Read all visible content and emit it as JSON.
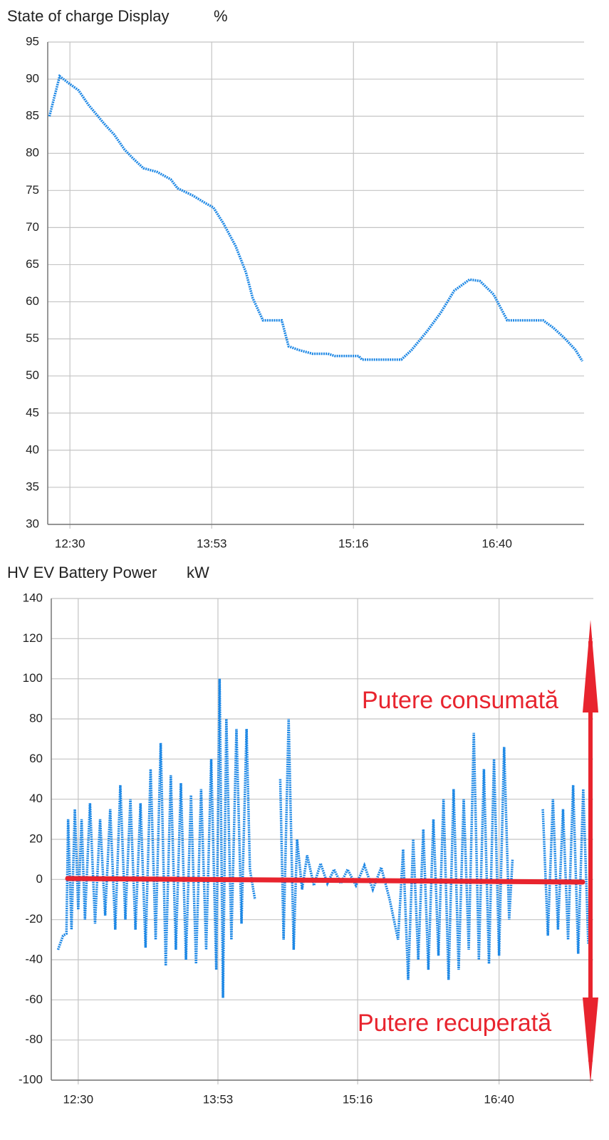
{
  "chart_data": [
    {
      "type": "line",
      "title": "State of charge Display",
      "unit": "%",
      "color": "#1e88e5",
      "grid": true,
      "xlim": [
        737,
        1051
      ],
      "xticks": [
        {
          "value": 750,
          "label": "12:30"
        },
        {
          "value": 833,
          "label": "13:53"
        },
        {
          "value": 916,
          "label": "15:16"
        },
        {
          "value": 1000,
          "label": "16:40"
        }
      ],
      "ylim": [
        30,
        95
      ],
      "yticks": [
        30,
        35,
        40,
        45,
        50,
        55,
        60,
        65,
        70,
        75,
        80,
        85,
        90,
        95
      ],
      "x": [
        738,
        744,
        749,
        755,
        761,
        770,
        776,
        782,
        787,
        793,
        801,
        809,
        813,
        822,
        830,
        834,
        840,
        847,
        853,
        857,
        863,
        874,
        878,
        884,
        892,
        901,
        905,
        919,
        921,
        944,
        950,
        959,
        967,
        975,
        984,
        990,
        998,
        1006,
        1027,
        1033,
        1040,
        1046,
        1050
      ],
      "values": [
        85,
        90.4,
        89.5,
        88.5,
        86.5,
        84,
        82.5,
        80.5,
        79.3,
        78,
        77.5,
        76.5,
        75.3,
        74.3,
        73.2,
        72.7,
        70.5,
        67.5,
        64,
        60.5,
        57.5,
        57.5,
        54,
        53.5,
        53,
        53,
        52.7,
        52.7,
        52.2,
        52.2,
        53.5,
        56,
        58.5,
        61.5,
        63,
        62.8,
        61,
        57.5,
        57.5,
        56.5,
        55,
        53.5,
        52
      ]
    },
    {
      "type": "line",
      "title": "HV EV Battery Power",
      "unit": "kW",
      "color": "#1e88e5",
      "grid": true,
      "annotations": [
        "Putere consumată",
        "Putere recuperată"
      ],
      "xlim": [
        734,
        1056
      ],
      "xticks": [
        {
          "value": 750,
          "label": "12:30"
        },
        {
          "value": 833,
          "label": "13:53"
        },
        {
          "value": 916,
          "label": "15:16"
        },
        {
          "value": 1000,
          "label": "16:40"
        }
      ],
      "ylim": [
        -100,
        140
      ],
      "yticks": [
        -100,
        -80,
        -60,
        -40,
        -20,
        0,
        20,
        40,
        60,
        80,
        100,
        120,
        140
      ],
      "x": [
        738,
        741,
        743,
        744,
        746,
        748,
        750,
        752,
        754,
        757,
        760,
        763,
        766,
        769,
        772,
        775,
        778,
        781,
        784,
        787,
        790,
        793,
        796,
        799,
        802,
        805,
        808,
        811,
        814,
        817,
        820,
        823,
        826,
        829,
        832,
        834,
        836,
        838,
        841,
        844,
        847,
        850,
        852,
        855,
        866,
        870,
        872,
        875,
        878,
        880,
        883,
        886,
        890,
        894,
        898,
        902,
        906,
        910,
        915,
        920,
        925,
        930,
        935,
        940,
        943,
        946,
        949,
        952,
        955,
        958,
        961,
        964,
        967,
        970,
        973,
        976,
        979,
        982,
        985,
        988,
        991,
        994,
        997,
        1000,
        1003,
        1006,
        1008,
        1015,
        1026,
        1029,
        1032,
        1035,
        1038,
        1041,
        1044,
        1047,
        1050,
        1053
      ],
      "values": [
        -35,
        -28,
        -27,
        30,
        -25,
        35,
        -15,
        30,
        -20,
        38,
        -22,
        30,
        -18,
        35,
        -25,
        47,
        -20,
        40,
        -25,
        38,
        -34,
        55,
        -30,
        68,
        -43,
        52,
        -35,
        48,
        -40,
        42,
        -42,
        45,
        -35,
        60,
        -45,
        100,
        -59,
        80,
        -30,
        75,
        -22,
        75,
        5,
        -10,
        null,
        50,
        -30,
        80,
        -35,
        20,
        -5,
        12,
        -3,
        8,
        -2,
        5,
        -2,
        5,
        -3,
        7,
        -5,
        6,
        -10,
        -30,
        15,
        -50,
        20,
        -40,
        25,
        -45,
        30,
        -38,
        40,
        -50,
        45,
        -45,
        40,
        -35,
        73,
        -40,
        55,
        -42,
        60,
        -38,
        66,
        -20,
        10,
        null,
        35,
        -28,
        40,
        -25,
        35,
        -30,
        47,
        -37,
        45,
        -32
      ]
    }
  ]
}
